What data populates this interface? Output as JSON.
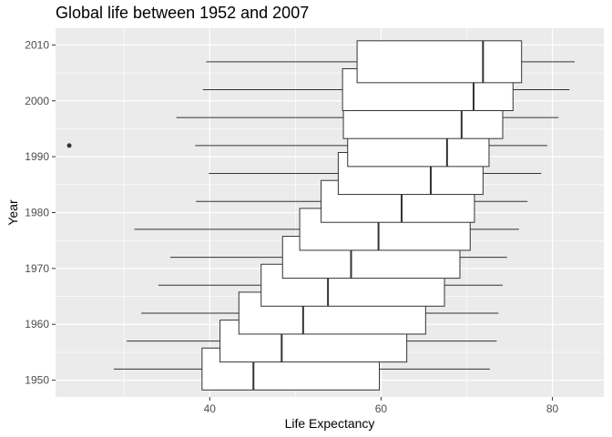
{
  "chart_data": {
    "type": "boxplot",
    "orientation": "horizontal",
    "title": "Global life between 1952 and 2007",
    "xlabel": "Life Expectancy",
    "ylabel": "Year",
    "xlim": [
      22,
      86
    ],
    "ylim": [
      1947,
      2013
    ],
    "x_ticks": [
      40,
      60,
      80
    ],
    "y_ticks": [
      1950,
      1960,
      1970,
      1980,
      1990,
      2000,
      2010
    ],
    "grid": true,
    "panel_background": "#ebebeb",
    "grid_color": "#ffffff",
    "box_fill": "#ffffff",
    "line_color": "#333333",
    "boxes": [
      {
        "year": 1952,
        "min": 28.8,
        "q1": 39.1,
        "median": 45.1,
        "q3": 59.8,
        "max": 72.7
      },
      {
        "year": 1957,
        "min": 30.3,
        "q1": 41.2,
        "median": 48.4,
        "q3": 63.0,
        "max": 73.5
      },
      {
        "year": 1962,
        "min": 32.0,
        "q1": 43.4,
        "median": 50.9,
        "q3": 65.2,
        "max": 73.7
      },
      {
        "year": 1967,
        "min": 34.0,
        "q1": 46.0,
        "median": 53.8,
        "q3": 67.4,
        "max": 74.2
      },
      {
        "year": 1972,
        "min": 35.4,
        "q1": 48.5,
        "median": 56.5,
        "q3": 69.2,
        "max": 74.7
      },
      {
        "year": 1977,
        "min": 31.2,
        "q1": 50.5,
        "median": 59.7,
        "q3": 70.4,
        "max": 76.1
      },
      {
        "year": 1982,
        "min": 38.4,
        "q1": 53.0,
        "median": 62.4,
        "q3": 70.9,
        "max": 77.1
      },
      {
        "year": 1987,
        "min": 39.9,
        "q1": 55.0,
        "median": 65.8,
        "q3": 71.9,
        "max": 78.7
      },
      {
        "year": 1992,
        "min": 38.3,
        "q1": 56.1,
        "median": 67.7,
        "q3": 72.6,
        "max": 79.4,
        "outliers": [
          23.6
        ]
      },
      {
        "year": 1997,
        "min": 36.1,
        "q1": 55.6,
        "median": 69.4,
        "q3": 74.2,
        "max": 80.7
      },
      {
        "year": 2002,
        "min": 39.2,
        "q1": 55.5,
        "median": 70.8,
        "q3": 75.4,
        "max": 82.0
      },
      {
        "year": 2007,
        "min": 39.6,
        "q1": 57.2,
        "median": 71.9,
        "q3": 76.4,
        "max": 82.6
      }
    ]
  }
}
